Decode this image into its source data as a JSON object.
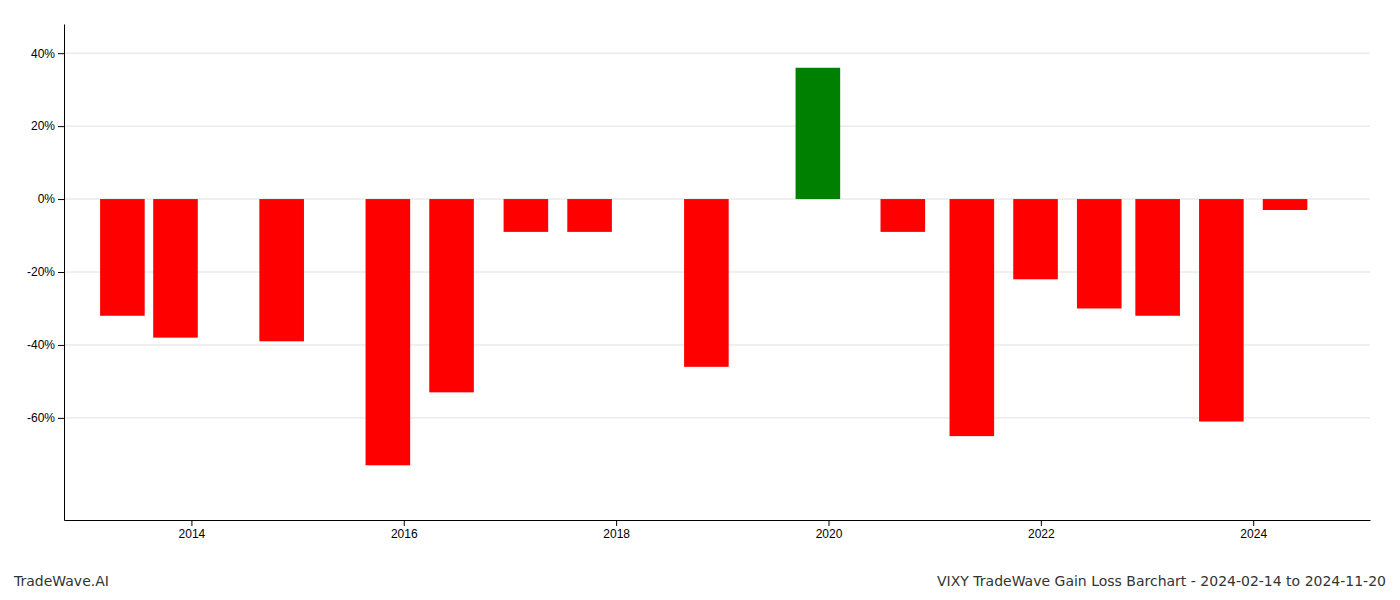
{
  "chart_data": {
    "type": "bar",
    "title": "VIXY TradeWave Gain Loss Barchart - 2024-02-14 to 2024-11-20",
    "annotations": [
      "TradeWave.AI"
    ],
    "x": [
      2013.35,
      2013.85,
      2014.85,
      2015.85,
      2016.45,
      2017.15,
      2017.75,
      2018.85,
      2019.9,
      2020.7,
      2021.35,
      2021.95,
      2022.55,
      2023.1,
      2023.7,
      2024.3
    ],
    "values": [
      -32,
      -38,
      -39,
      -73,
      -53,
      -9,
      -9,
      -46,
      36,
      -9,
      -65,
      -22,
      -30,
      -32,
      -61,
      -3
    ],
    "colors": [
      "#ff0000",
      "#ff0000",
      "#ff0000",
      "#ff0000",
      "#ff0000",
      "#ff0000",
      "#ff0000",
      "#ff0000",
      "#008000",
      "#ff0000",
      "#ff0000",
      "#ff0000",
      "#ff0000",
      "#ff0000",
      "#ff0000",
      "#ff0000"
    ],
    "xlim": [
      2012.8,
      2025.1
    ],
    "xticks": [
      2014,
      2016,
      2018,
      2020,
      2022,
      2024
    ],
    "ylim": [
      -88,
      48
    ],
    "yticks": [
      {
        "value": -60,
        "label": "-60%"
      },
      {
        "value": -40,
        "label": "-40%"
      },
      {
        "value": -20,
        "label": "-20%"
      },
      {
        "value": 0,
        "label": "0%"
      },
      {
        "value": 20,
        "label": "20%"
      },
      {
        "value": 40,
        "label": "40%"
      }
    ],
    "grid": true
  }
}
